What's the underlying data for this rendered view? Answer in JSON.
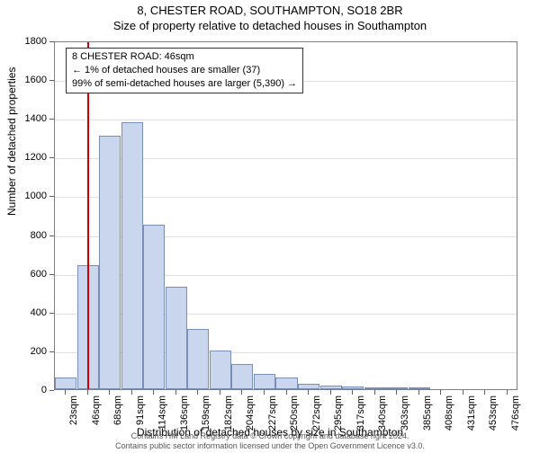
{
  "title_main": "8, CHESTER ROAD, SOUTHAMPTON, SO18 2BR",
  "title_sub": "Size of property relative to detached houses in Southampton",
  "ylabel": "Number of detached properties",
  "xlabel": "Distribution of detached houses by size in Southampton",
  "footer_line1": "Contains HM Land Registry data © Crown copyright and database right 2024.",
  "footer_line2": "Contains public sector information licensed under the Open Government Licence v3.0.",
  "info_box": {
    "line1": "8 CHESTER ROAD: 46sqm",
    "line2": "← 1% of detached houses are smaller (37)",
    "line3": "99% of semi-detached houses are larger (5,390) →"
  },
  "chart": {
    "type": "bar-histogram",
    "ylim": [
      0,
      1800
    ],
    "ylabel_fontsize": 12,
    "xlabel_fontsize": 12,
    "tick_fontsize": 11,
    "grid_color": "#e0e0e0",
    "border_color": "#808080",
    "bar_fill": "#c9d6ed",
    "bar_stroke": "#7a8db5",
    "marker_color": "#cc0000",
    "marker_x_value": 46,
    "background_color": "#ffffff",
    "yticks": [
      0,
      200,
      400,
      600,
      800,
      1000,
      1200,
      1400,
      1600,
      1800
    ],
    "x_categories": [
      "23sqm",
      "46sqm",
      "68sqm",
      "91sqm",
      "114sqm",
      "136sqm",
      "159sqm",
      "182sqm",
      "204sqm",
      "227sqm",
      "250sqm",
      "272sqm",
      "295sqm",
      "317sqm",
      "340sqm",
      "363sqm",
      "385sqm",
      "408sqm",
      "431sqm",
      "453sqm",
      "476sqm"
    ],
    "values": [
      60,
      640,
      1310,
      1380,
      850,
      530,
      310,
      200,
      130,
      80,
      60,
      30,
      20,
      15,
      10,
      8,
      5,
      0,
      0,
      0,
      0
    ]
  }
}
